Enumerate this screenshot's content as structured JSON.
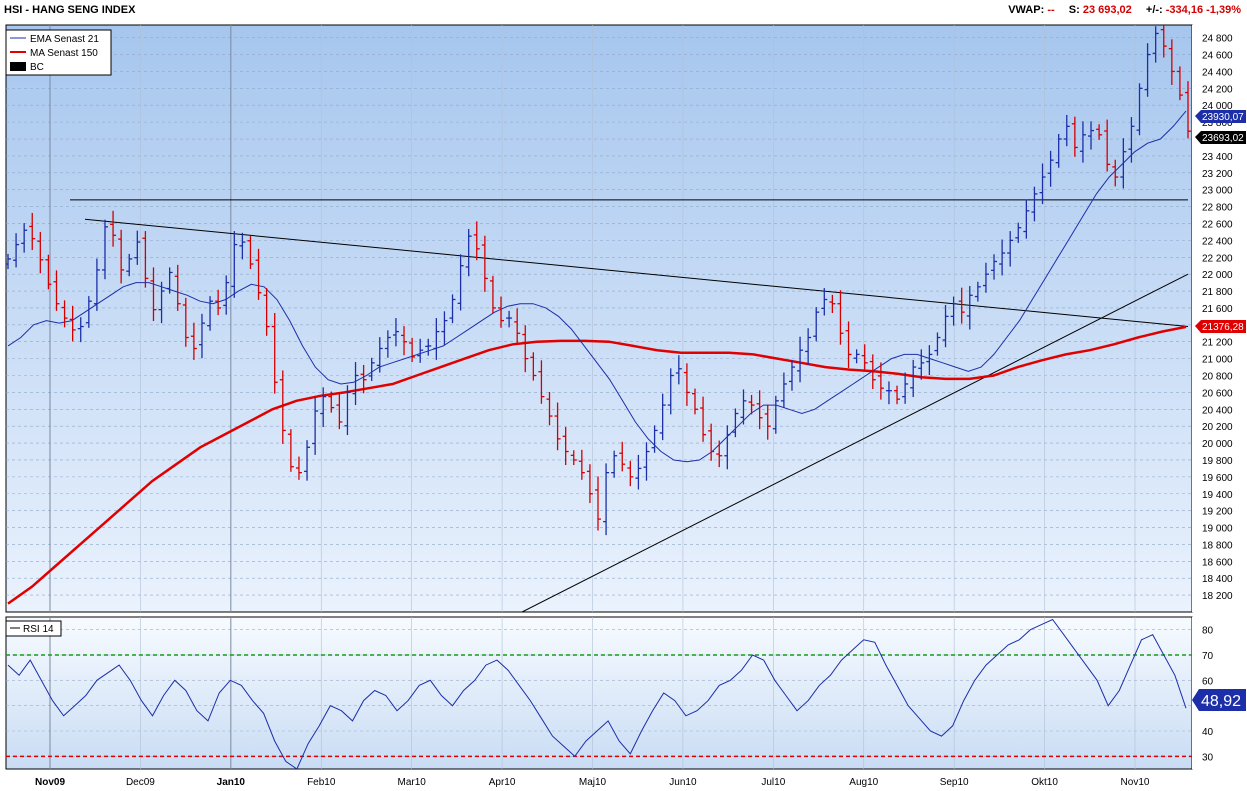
{
  "header": {
    "title": "HSI - HANG SENG INDEX",
    "vwap_label": "VWAP:",
    "vwap_value": "--",
    "s_label": "S:",
    "s_value": "23 693,02",
    "change_label": "+/-:",
    "change_value": "-334,16",
    "change_pct": "-1,39%"
  },
  "legend": {
    "ema": "EMA  Senast 21",
    "ma": "MA  Senast 150",
    "bc": "BC",
    "rsi": "RSI  14"
  },
  "price_labels": {
    "ema_last": "23930,07",
    "close_last": "23693,02",
    "ma_last": "21376,28",
    "rsi_last": "48,92"
  },
  "colors": {
    "price_up": "#1c2fa8",
    "price_down": "#d40000",
    "ema": "#1c2fa8",
    "ma": "#e00000",
    "rsi_line": "#1c2fa8",
    "rsi_overbought": "#1a9a1a",
    "rsi_oversold": "#e00000",
    "bg_top": "#a8c8f0",
    "bg_bottom": "#f4f8ff"
  },
  "chart_data": [
    {
      "type": "ohlc",
      "title": "HSI - HANG SENG INDEX",
      "ylim": [
        18000,
        24950
      ],
      "y_ticks": [
        "18 200",
        "18 400",
        "18 600",
        "18 800",
        "19 000",
        "19 200",
        "19 400",
        "19 600",
        "19 800",
        "20 000",
        "20 200",
        "20 400",
        "20 600",
        "20 800",
        "21 000",
        "21 200",
        "21 400",
        "21 600",
        "21 800",
        "22 000",
        "22 200",
        "22 400",
        "22 600",
        "22 800",
        "23 000",
        "23 200",
        "23 400",
        "23 600",
        "23 800",
        "24 000",
        "24 200",
        "24 400",
        "24 600",
        "24 800"
      ],
      "x_labels": [
        "Nov09",
        "Dec09",
        "Jan10",
        "Feb10",
        "Mar10",
        "Apr10",
        "Maj10",
        "Jun10",
        "Jul10",
        "Aug10",
        "Sep10",
        "Okt10",
        "Nov10"
      ],
      "close_series": [
        22180,
        22350,
        22520,
        22420,
        22170,
        21880,
        21650,
        21480,
        21340,
        21380,
        21680,
        22050,
        22560,
        22460,
        22050,
        22180,
        22380,
        21950,
        21580,
        21800,
        22020,
        21650,
        21250,
        21120,
        21420,
        21680,
        21600,
        21900,
        22350,
        22380,
        22120,
        21780,
        21380,
        20720,
        20150,
        19720,
        19650,
        19950,
        20380,
        20550,
        20420,
        20250,
        20600,
        20800,
        20750,
        20950,
        21120,
        21250,
        21320,
        21200,
        21020,
        21100,
        21150,
        21320,
        21450,
        21700,
        22100,
        22450,
        22300,
        21950,
        21600,
        21450,
        21480,
        21300,
        21000,
        20800,
        20550,
        20320,
        20050,
        19900,
        19800,
        19650,
        19400,
        19100,
        19650,
        19850,
        19750,
        19600,
        19700,
        19900,
        20150,
        20450,
        20800,
        20880,
        20600,
        20400,
        20100,
        19900,
        19850,
        20100,
        20350,
        20500,
        20450,
        20300,
        20200,
        20500,
        20700,
        20900,
        21100,
        21250,
        21550,
        21700,
        21650,
        21300,
        21050,
        21050,
        20950,
        20750,
        20650,
        20620,
        20520,
        20700,
        20900,
        20950,
        21050,
        21250,
        21500,
        21650,
        21550,
        21750,
        21850,
        22000,
        22150,
        22250,
        22400,
        22550,
        22750,
        22950,
        23150,
        23350,
        23600,
        23750,
        23500,
        23650,
        23700,
        23650,
        23300,
        23150,
        23450,
        23750,
        24200,
        24600,
        24850,
        24700,
        24400,
        24120,
        23693
      ],
      "ema_series": [
        21150,
        21250,
        21400,
        21450,
        21420,
        21450,
        21550,
        21650,
        21750,
        21850,
        21900,
        21900,
        21850,
        21800,
        21750,
        21680,
        21650,
        21700,
        21800,
        21880,
        21850,
        21700,
        21450,
        21150,
        20900,
        20750,
        20700,
        20720,
        20800,
        20900,
        20950,
        21000,
        21050,
        21100,
        21150,
        21250,
        21350,
        21450,
        21550,
        21620,
        21650,
        21650,
        21600,
        21500,
        21350,
        21150,
        20950,
        20750,
        20500,
        20250,
        20050,
        19900,
        19800,
        19780,
        19800,
        19900,
        20050,
        20200,
        20350,
        20450,
        20450,
        20400,
        20350,
        20400,
        20500,
        20600,
        20700,
        20800,
        20900,
        21000,
        21050,
        21050,
        21000,
        20950,
        20900,
        20850,
        20900,
        21050,
        21250,
        21450,
        21700,
        21950,
        22200,
        22450,
        22700,
        22950,
        23150,
        23300,
        23450,
        23550,
        23600,
        23750,
        23930
      ],
      "ma_series": [
        18100,
        18300,
        18550,
        18800,
        19050,
        19300,
        19550,
        19750,
        19950,
        20100,
        20250,
        20400,
        20500,
        20560,
        20600,
        20650,
        20700,
        20800,
        20900,
        21000,
        21100,
        21170,
        21200,
        21210,
        21210,
        21200,
        21150,
        21100,
        21070,
        21070,
        21070,
        21050,
        21000,
        20950,
        20900,
        20870,
        20850,
        20820,
        20780,
        20760,
        20760,
        20800,
        20900,
        20980,
        21050,
        21100,
        21170,
        21250,
        21320,
        21376
      ],
      "rsi": {
        "ylim": [
          25,
          85
        ],
        "y_ticks": [
          "30",
          "40",
          "50",
          "60",
          "70",
          "80"
        ],
        "overbought": 70,
        "oversold": 30,
        "values": [
          66,
          62,
          68,
          60,
          52,
          46,
          50,
          54,
          60,
          63,
          66,
          60,
          52,
          46,
          54,
          60,
          56,
          48,
          44,
          55,
          60,
          58,
          52,
          47,
          36,
          28,
          25,
          35,
          42,
          50,
          48,
          44,
          52,
          56,
          54,
          48,
          52,
          58,
          60,
          54,
          50,
          56,
          60,
          66,
          68,
          64,
          58,
          52,
          45,
          38,
          34,
          30,
          36,
          40,
          44,
          36,
          31,
          40,
          48,
          55,
          52,
          46,
          48,
          52,
          58,
          60,
          64,
          70,
          68,
          60,
          54,
          48,
          52,
          58,
          62,
          68,
          72,
          76,
          75,
          66,
          58,
          50,
          45,
          40,
          38,
          42,
          52,
          60,
          66,
          70,
          74,
          76,
          80,
          82,
          84,
          78,
          72,
          66,
          60,
          50,
          56,
          66,
          76,
          78,
          70,
          62,
          49
        ]
      },
      "trendlines": [
        {
          "name": "descending",
          "from": [
            "Dec09",
            22650
          ],
          "to": [
            "Nov10",
            21380
          ]
        },
        {
          "name": "ascending",
          "from": [
            "Apr10",
            18000
          ],
          "to": [
            "Nov10",
            22000
          ]
        },
        {
          "name": "horizontal",
          "value": 22880
        }
      ]
    }
  ]
}
